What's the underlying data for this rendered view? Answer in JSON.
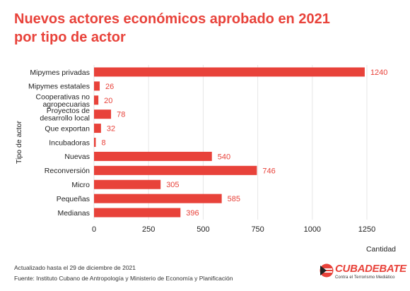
{
  "title_line1": "Nuevos actores económicos aprobado en 2021",
  "title_line2": "por tipo de actor",
  "footer_updated": "Actualizado hasta el 29 de diciembre de 2021",
  "footer_source": "Fuente: Instituto Cubano de Antropología y Ministerio de Economía y Planificación",
  "logo": {
    "wordmark": "CUBADEBATE",
    "tagline": "Contra el Terrorismo Mediático"
  },
  "colors": {
    "bar": "#e8423a",
    "title": "#e8423a",
    "grid": "#e6e6e6"
  },
  "chart_data": {
    "type": "bar",
    "orientation": "horizontal",
    "categories": [
      [
        "Mipymes privadas"
      ],
      [
        "Mipymes estatales"
      ],
      [
        "Cooperativas no",
        "agropecuarias"
      ],
      [
        "Proyectos de",
        "desarrollo local"
      ],
      [
        "Que exportan"
      ],
      [
        "Incubadoras"
      ],
      [
        "Nuevas"
      ],
      [
        "Reconversión"
      ],
      [
        "Micro"
      ],
      [
        "Pequeñas"
      ],
      [
        "Medianas"
      ]
    ],
    "values": [
      1240,
      26,
      20,
      78,
      32,
      8,
      540,
      746,
      305,
      585,
      396
    ],
    "xlabel": "Cantidad",
    "ylabel": "Tipo de actor",
    "xlim": [
      0,
      1360
    ],
    "xticks": [
      0,
      250,
      500,
      750,
      1000,
      1250
    ],
    "grid": true,
    "data_labels": true
  }
}
